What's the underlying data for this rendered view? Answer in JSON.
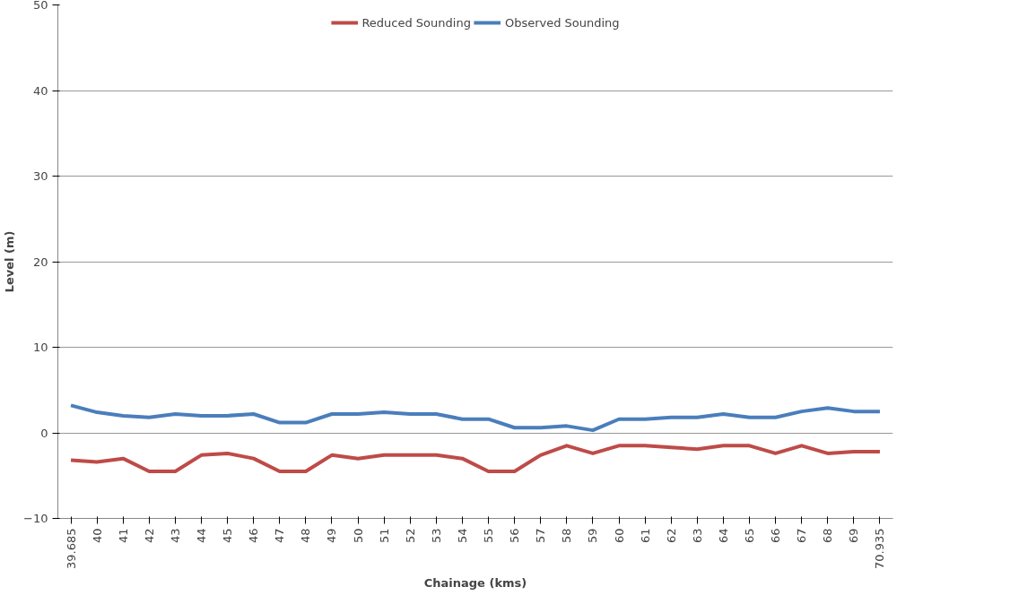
{
  "chart_data": {
    "type": "line",
    "xlabel": "Chainage (kms)",
    "ylabel": "Level (m)",
    "categories": [
      "39.685",
      "40",
      "41",
      "42",
      "43",
      "44",
      "45",
      "46",
      "47",
      "48",
      "49",
      "50",
      "51",
      "52",
      "53",
      "54",
      "55",
      "56",
      "57",
      "58",
      "59",
      "60",
      "61",
      "62",
      "63",
      "64",
      "65",
      "66",
      "67",
      "68",
      "69",
      "70.935"
    ],
    "series": [
      {
        "name": "Reduced Sounding",
        "color": "#be4b48",
        "values": [
          -3.2,
          -3.4,
          -3.0,
          -4.5,
          -4.5,
          -2.6,
          -2.4,
          -3.0,
          -4.5,
          -4.5,
          -2.6,
          -3.0,
          -2.6,
          -2.6,
          -2.6,
          -3.0,
          -4.5,
          -4.5,
          -2.6,
          -1.5,
          -2.4,
          -1.5,
          -1.5,
          -1.7,
          -1.9,
          -1.5,
          -1.5,
          -2.4,
          -1.5,
          -2.4,
          -2.2,
          -2.2
        ]
      },
      {
        "name": "Observed Sounding",
        "color": "#4a7ebb",
        "values": [
          3.2,
          2.4,
          2.0,
          1.8,
          2.2,
          2.0,
          2.0,
          2.2,
          1.2,
          1.2,
          2.2,
          2.2,
          2.4,
          2.2,
          2.2,
          1.6,
          1.6,
          0.6,
          0.6,
          0.8,
          0.3,
          1.6,
          1.6,
          1.8,
          1.8,
          2.2,
          1.8,
          1.8,
          2.5,
          2.9,
          2.5,
          2.5
        ]
      }
    ],
    "ylim": [
      -10,
      50
    ],
    "yticks": [
      -10,
      0,
      10,
      20,
      30,
      40,
      50
    ],
    "grid": "y",
    "legend": "top",
    "marker": "none",
    "line_style": "solid"
  }
}
